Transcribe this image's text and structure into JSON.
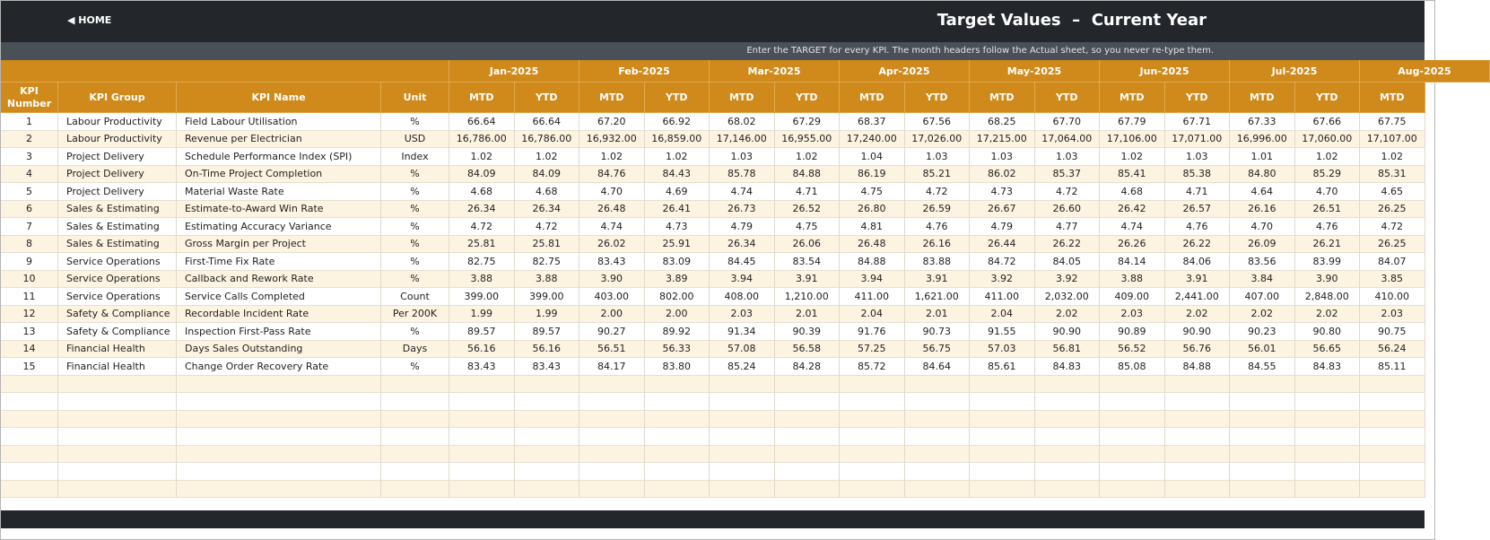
{
  "header": {
    "home": "◀ HOME",
    "title": "Target Values  –  Current Year",
    "note": "Enter the TARGET for every KPI. The month headers follow the Actual sheet, so you never re-type them."
  },
  "table": {
    "columns": [
      "KPI Number",
      "KPI Group",
      "KPI Name",
      "Unit"
    ],
    "months": [
      {
        "name": "Jan-2025",
        "subs": [
          "MTD",
          "YTD"
        ]
      },
      {
        "name": "Feb-2025",
        "subs": [
          "MTD",
          "YTD"
        ]
      },
      {
        "name": "Mar-2025",
        "subs": [
          "MTD",
          "YTD"
        ]
      },
      {
        "name": "Apr-2025",
        "subs": [
          "MTD",
          "YTD"
        ]
      },
      {
        "name": "May-2025",
        "subs": [
          "MTD",
          "YTD"
        ]
      },
      {
        "name": "Jun-2025",
        "subs": [
          "MTD",
          "YTD"
        ]
      },
      {
        "name": "Jul-2025",
        "subs": [
          "MTD",
          "YTD"
        ]
      },
      {
        "name": "Aug-2025",
        "subs": [
          "MTD"
        ]
      }
    ],
    "rows": [
      [
        "1",
        "Labour Productivity",
        "Field Labour Utilisation",
        "%",
        "66.64",
        "66.64",
        "67.20",
        "66.92",
        "68.02",
        "67.29",
        "68.37",
        "67.56",
        "68.25",
        "67.70",
        "67.79",
        "67.71",
        "67.33",
        "67.66",
        "67.75"
      ],
      [
        "2",
        "Labour Productivity",
        "Revenue per Electrician",
        "USD",
        "16,786.00",
        "16,786.00",
        "16,932.00",
        "16,859.00",
        "17,146.00",
        "16,955.00",
        "17,240.00",
        "17,026.00",
        "17,215.00",
        "17,064.00",
        "17,106.00",
        "17,071.00",
        "16,996.00",
        "17,060.00",
        "17,107.00"
      ],
      [
        "3",
        "Project Delivery",
        "Schedule Performance Index (SPI)",
        "Index",
        "1.02",
        "1.02",
        "1.02",
        "1.02",
        "1.03",
        "1.02",
        "1.04",
        "1.03",
        "1.03",
        "1.03",
        "1.02",
        "1.03",
        "1.01",
        "1.02",
        "1.02"
      ],
      [
        "4",
        "Project Delivery",
        "On-Time Project Completion",
        "%",
        "84.09",
        "84.09",
        "84.76",
        "84.43",
        "85.78",
        "84.88",
        "86.19",
        "85.21",
        "86.02",
        "85.37",
        "85.41",
        "85.38",
        "84.80",
        "85.29",
        "85.31"
      ],
      [
        "5",
        "Project Delivery",
        "Material Waste Rate",
        "%",
        "4.68",
        "4.68",
        "4.70",
        "4.69",
        "4.74",
        "4.71",
        "4.75",
        "4.72",
        "4.73",
        "4.72",
        "4.68",
        "4.71",
        "4.64",
        "4.70",
        "4.65"
      ],
      [
        "6",
        "Sales & Estimating",
        "Estimate-to-Award Win Rate",
        "%",
        "26.34",
        "26.34",
        "26.48",
        "26.41",
        "26.73",
        "26.52",
        "26.80",
        "26.59",
        "26.67",
        "26.60",
        "26.42",
        "26.57",
        "26.16",
        "26.51",
        "26.25"
      ],
      [
        "7",
        "Sales & Estimating",
        "Estimating Accuracy Variance",
        "%",
        "4.72",
        "4.72",
        "4.74",
        "4.73",
        "4.79",
        "4.75",
        "4.81",
        "4.76",
        "4.79",
        "4.77",
        "4.74",
        "4.76",
        "4.70",
        "4.76",
        "4.72"
      ],
      [
        "8",
        "Sales & Estimating",
        "Gross Margin per Project",
        "%",
        "25.81",
        "25.81",
        "26.02",
        "25.91",
        "26.34",
        "26.06",
        "26.48",
        "26.16",
        "26.44",
        "26.22",
        "26.26",
        "26.22",
        "26.09",
        "26.21",
        "26.25"
      ],
      [
        "9",
        "Service Operations",
        "First-Time Fix Rate",
        "%",
        "82.75",
        "82.75",
        "83.43",
        "83.09",
        "84.45",
        "83.54",
        "84.88",
        "83.88",
        "84.72",
        "84.05",
        "84.14",
        "84.06",
        "83.56",
        "83.99",
        "84.07"
      ],
      [
        "10",
        "Service Operations",
        "Callback and Rework Rate",
        "%",
        "3.88",
        "3.88",
        "3.90",
        "3.89",
        "3.94",
        "3.91",
        "3.94",
        "3.91",
        "3.92",
        "3.92",
        "3.88",
        "3.91",
        "3.84",
        "3.90",
        "3.85"
      ],
      [
        "11",
        "Service Operations",
        "Service Calls Completed",
        "Count",
        "399.00",
        "399.00",
        "403.00",
        "802.00",
        "408.00",
        "1,210.00",
        "411.00",
        "1,621.00",
        "411.00",
        "2,032.00",
        "409.00",
        "2,441.00",
        "407.00",
        "2,848.00",
        "410.00"
      ],
      [
        "12",
        "Safety & Compliance",
        "Recordable Incident Rate",
        "Per 200K",
        "1.99",
        "1.99",
        "2.00",
        "2.00",
        "2.03",
        "2.01",
        "2.04",
        "2.01",
        "2.04",
        "2.02",
        "2.03",
        "2.02",
        "2.02",
        "2.02",
        "2.03"
      ],
      [
        "13",
        "Safety & Compliance",
        "Inspection First-Pass Rate",
        "%",
        "89.57",
        "89.57",
        "90.27",
        "89.92",
        "91.34",
        "90.39",
        "91.76",
        "90.73",
        "91.55",
        "90.90",
        "90.89",
        "90.90",
        "90.23",
        "90.80",
        "90.75"
      ],
      [
        "14",
        "Financial Health",
        "Days Sales Outstanding",
        "Days",
        "56.16",
        "56.16",
        "56.51",
        "56.33",
        "57.08",
        "56.58",
        "57.25",
        "56.75",
        "57.03",
        "56.81",
        "56.52",
        "56.76",
        "56.01",
        "56.65",
        "56.24"
      ],
      [
        "15",
        "Financial Health",
        "Change Order Recovery Rate",
        "%",
        "83.43",
        "83.43",
        "84.17",
        "83.80",
        "85.24",
        "84.28",
        "85.72",
        "84.64",
        "85.61",
        "84.83",
        "85.08",
        "84.88",
        "84.55",
        "84.83",
        "85.11"
      ]
    ]
  }
}
